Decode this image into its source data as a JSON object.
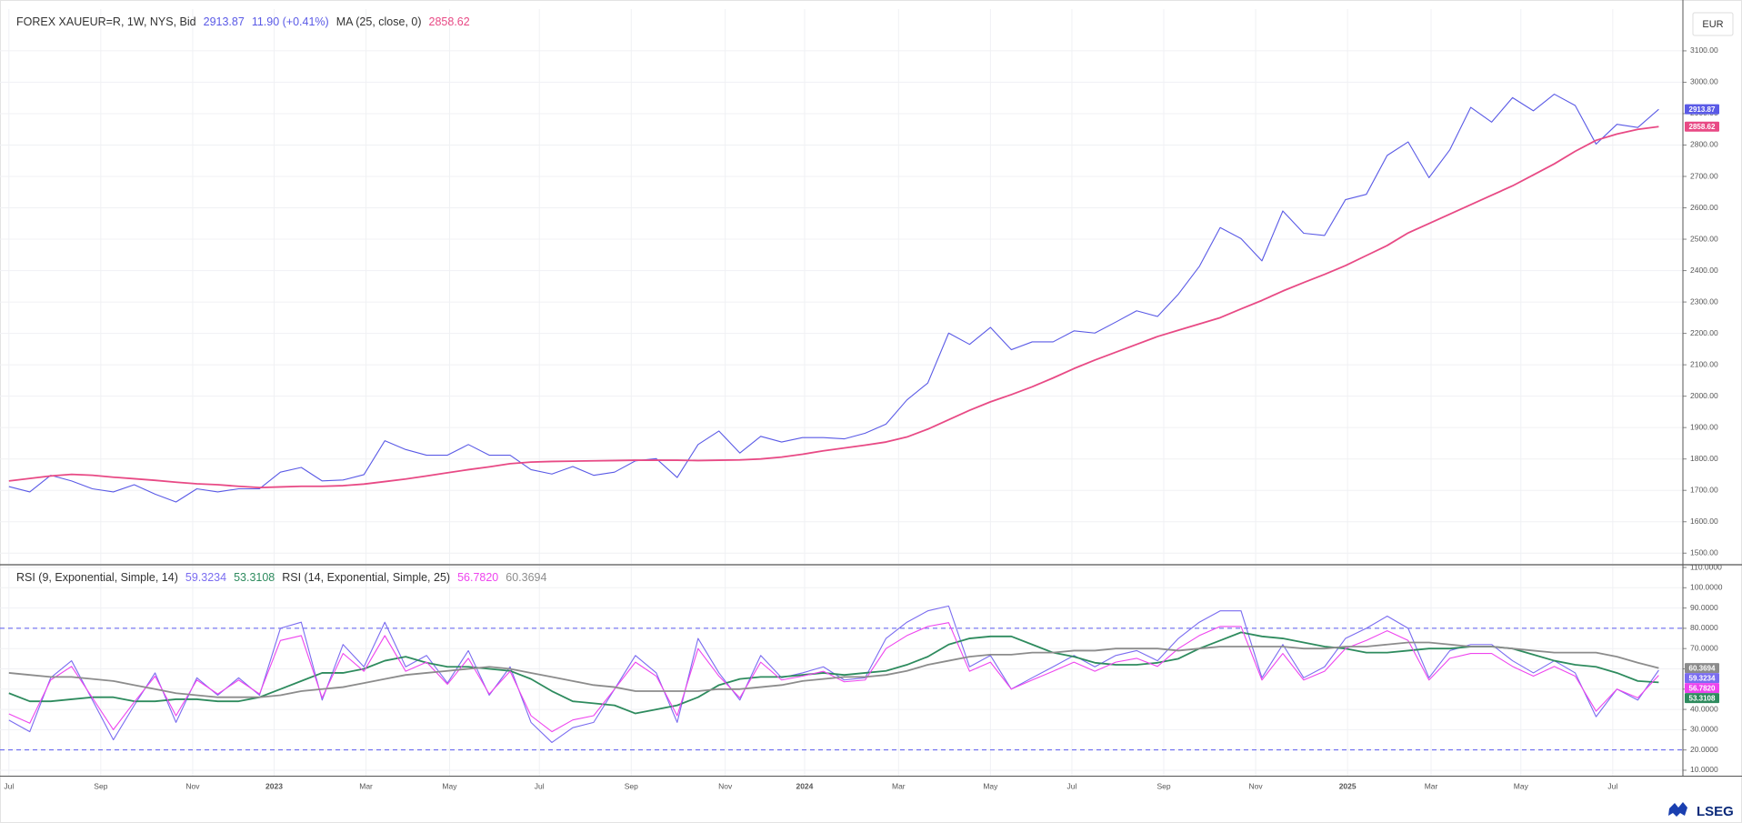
{
  "eur_button": "EUR",
  "brand": "LSEG",
  "chart_data": [
    {
      "type": "line",
      "xlim": [
        0,
        79
      ],
      "xticks": [
        {
          "value": 0,
          "label": "Jul"
        },
        {
          "value": 4.4,
          "label": "Sep"
        },
        {
          "value": 8.8,
          "label": "Nov"
        },
        {
          "value": 12.7,
          "label": "2023"
        },
        {
          "value": 17.1,
          "label": "Mar"
        },
        {
          "value": 21.1,
          "label": "May"
        },
        {
          "value": 25.4,
          "label": "Jul"
        },
        {
          "value": 29.8,
          "label": "Sep"
        },
        {
          "value": 34.3,
          "label": "Nov"
        },
        {
          "value": 38.1,
          "label": "2024"
        },
        {
          "value": 42.6,
          "label": "Mar"
        },
        {
          "value": 47,
          "label": "May"
        },
        {
          "value": 50.9,
          "label": "Jul"
        },
        {
          "value": 55.3,
          "label": "Sep"
        },
        {
          "value": 59.7,
          "label": "Nov"
        },
        {
          "value": 64.1,
          "label": "2025"
        },
        {
          "value": 68.1,
          "label": "Mar"
        },
        {
          "value": 72.4,
          "label": "May"
        },
        {
          "value": 76.8,
          "label": "Jul"
        }
      ],
      "ylim": [
        1466,
        3233
      ],
      "yticks": [
        {
          "value": 1500,
          "label": "1500.00"
        },
        {
          "value": 1600,
          "label": "1600.00"
        },
        {
          "value": 1700,
          "label": "1700.00"
        },
        {
          "value": 1800,
          "label": "1800.00"
        },
        {
          "value": 1900,
          "label": "1900.00"
        },
        {
          "value": 2000,
          "label": "2000.00"
        },
        {
          "value": 2100,
          "label": "2100.00"
        },
        {
          "value": 2200,
          "label": "2200.00"
        },
        {
          "value": 2300,
          "label": "2300.00"
        },
        {
          "value": 2400,
          "label": "2400.00"
        },
        {
          "value": 2500,
          "label": "2500.00"
        },
        {
          "value": 2600,
          "label": "2600.00"
        },
        {
          "value": 2700,
          "label": "2700.00"
        },
        {
          "value": 2800,
          "label": "2800.00"
        },
        {
          "value": 2900,
          "label": "2900.00"
        },
        {
          "value": 3000,
          "label": "3000.00"
        },
        {
          "value": 3100,
          "label": "3100.00"
        }
      ],
      "grid": true,
      "series": [
        {
          "name": "FOREX XAUEUR=R, 1W, NYS, Bid",
          "color": "#5a5ae6",
          "last_label": "2913.87",
          "change": "11.90 (+0.41%)",
          "values": [
            1712,
            1695,
            1748,
            1730,
            1705,
            1695,
            1718,
            1688,
            1663,
            1705,
            1695,
            1705,
            1705,
            1758,
            1773,
            1730,
            1733,
            1750,
            1858,
            1830,
            1812,
            1812,
            1846,
            1812,
            1812,
            1766,
            1752,
            1776,
            1748,
            1758,
            1794,
            1801,
            1741,
            1846,
            1889,
            1819,
            1872,
            1854,
            1868,
            1868,
            1864,
            1882,
            1911,
            1988,
            2042,
            2201,
            2165,
            2219,
            2148,
            2173,
            2173,
            2208,
            2201,
            2236,
            2272,
            2254,
            2325,
            2413,
            2537,
            2502,
            2431,
            2590,
            2519,
            2512,
            2626,
            2643,
            2767,
            2810,
            2696,
            2785,
            2920,
            2873,
            2951,
            2909,
            2962,
            2926,
            2803,
            2866,
            2856,
            2913.87
          ]
        },
        {
          "name": "MA (25, close, 0)",
          "color": "#e84a85",
          "last_label": "2858.62",
          "values": [
            1730,
            1738,
            1746,
            1751,
            1748,
            1742,
            1737,
            1732,
            1726,
            1721,
            1718,
            1713,
            1709,
            1711,
            1713,
            1713,
            1715,
            1720,
            1728,
            1736,
            1746,
            1756,
            1766,
            1775,
            1785,
            1790,
            1792,
            1793,
            1794,
            1795,
            1796,
            1796,
            1796,
            1795,
            1796,
            1797,
            1800,
            1806,
            1815,
            1826,
            1835,
            1844,
            1854,
            1870,
            1895,
            1925,
            1955,
            1982,
            2005,
            2030,
            2058,
            2088,
            2115,
            2140,
            2165,
            2190,
            2210,
            2230,
            2250,
            2278,
            2305,
            2335,
            2362,
            2388,
            2416,
            2448,
            2480,
            2520,
            2550,
            2580,
            2610,
            2640,
            2670,
            2705,
            2740,
            2780,
            2815,
            2835,
            2850,
            2858.62
          ]
        }
      ]
    },
    {
      "type": "line",
      "ylim": [
        7.3,
        110.9
      ],
      "yticks": [
        {
          "value": 10,
          "label": "10.0000"
        },
        {
          "value": 20,
          "label": "20.0000"
        },
        {
          "value": 30,
          "label": "30.0000"
        },
        {
          "value": 40,
          "label": "40.0000"
        },
        {
          "value": 50,
          "label": "50.0000"
        },
        {
          "value": 60,
          "label": "60.0000"
        },
        {
          "value": 70,
          "label": "70.0000"
        },
        {
          "value": 80,
          "label": "80.0000"
        },
        {
          "value": 90,
          "label": "90.0000"
        },
        {
          "value": 100,
          "label": "100.0000"
        },
        {
          "value": 110,
          "label": "110.0000"
        }
      ],
      "grid": true,
      "levels": [
        80,
        20
      ],
      "level_color": "#5a5af0",
      "series": [
        {
          "name": "RSI (9, Exponential, Simple, 14)",
          "color": "#7a6cf0",
          "last_label": "59.3234",
          "values": [
            34.7,
            29,
            55.6,
            64,
            44.6,
            25,
            42,
            58,
            33.6,
            55.6,
            47,
            55.6,
            47,
            80,
            83,
            44.6,
            72,
            61,
            83,
            61,
            66.6,
            53,
            69,
            47,
            61,
            33.6,
            23.7,
            31,
            33.6,
            50,
            66.6,
            58,
            33.6,
            75,
            58,
            44.6,
            66.6,
            55.6,
            58,
            61,
            54.5,
            55.6,
            75,
            83,
            88.6,
            91,
            61,
            66.6,
            50,
            55.6,
            61,
            66.6,
            61,
            66.6,
            69,
            64,
            75,
            83,
            88.6,
            88.6,
            55.6,
            72,
            55.6,
            61,
            75,
            80,
            86,
            80,
            55.6,
            69,
            72,
            72,
            64,
            58,
            64,
            58,
            36.4,
            50,
            44.6,
            59.3234
          ]
        },
        {
          "color": "#2e8b5e",
          "last_label": "53.3108",
          "values": [
            48,
            44,
            44,
            45,
            46,
            46,
            44,
            44,
            45,
            45,
            44,
            44,
            46,
            50,
            54,
            58,
            58,
            60,
            64,
            66,
            63,
            61,
            61,
            60,
            59,
            55,
            49,
            44,
            43,
            42,
            38,
            40,
            42,
            46,
            52,
            55,
            56,
            56,
            57,
            58,
            57,
            58,
            59,
            62,
            66,
            72,
            75,
            76,
            76,
            72,
            68,
            66,
            63,
            62,
            62,
            63,
            65,
            70,
            74,
            78,
            76,
            75,
            73,
            71,
            70,
            68,
            68,
            69,
            70,
            70,
            71,
            71,
            70,
            67,
            64,
            62,
            61,
            58,
            54,
            53.3108
          ]
        },
        {
          "name": "RSI (14, Exponential, Simple, 25)",
          "color": "#ee44ee",
          "last_label": "56.7820",
          "values": [
            37.8,
            33.2,
            54.5,
            61.2,
            45.7,
            30,
            43.6,
            56.4,
            36.9,
            54.5,
            47.6,
            54.5,
            47.6,
            74,
            76.4,
            45.7,
            67.6,
            58.8,
            76.4,
            58.8,
            63.3,
            52.4,
            65.2,
            47.6,
            58.8,
            36.9,
            29,
            34.8,
            36.9,
            50,
            63.3,
            56.4,
            36.9,
            70,
            56.4,
            45.7,
            63.3,
            54.5,
            56.4,
            58.8,
            53.6,
            54.5,
            70,
            76.4,
            80.9,
            82.8,
            58.8,
            63.3,
            50,
            54.5,
            58.8,
            63.3,
            58.8,
            63.3,
            65.2,
            61.2,
            70,
            76.4,
            80.9,
            80.9,
            54.5,
            67.6,
            54.5,
            58.8,
            70,
            74,
            78.8,
            74,
            54.5,
            65.2,
            67.6,
            67.6,
            61.2,
            56.4,
            61.2,
            56.4,
            39.1,
            50,
            45.7,
            56.782
          ]
        },
        {
          "color": "#8c8c8c",
          "last_label": "60.3694",
          "values": [
            58,
            57,
            56,
            56,
            55,
            54,
            52,
            50,
            48,
            47,
            46,
            46,
            46,
            47,
            49,
            50,
            51,
            53,
            55,
            57,
            58,
            59,
            60,
            61,
            60,
            58,
            56,
            54,
            52,
            51,
            49,
            49,
            49,
            49,
            50,
            50,
            51,
            52,
            54,
            55,
            56,
            56,
            57,
            59,
            62,
            64,
            66,
            67,
            67,
            68,
            68,
            69,
            69,
            70,
            70,
            70,
            69,
            70,
            71,
            71,
            71,
            71,
            70,
            70,
            71,
            71,
            72,
            73,
            73,
            72,
            71,
            71,
            70,
            69,
            68,
            68,
            68,
            66,
            63,
            60.3694
          ]
        }
      ]
    }
  ]
}
